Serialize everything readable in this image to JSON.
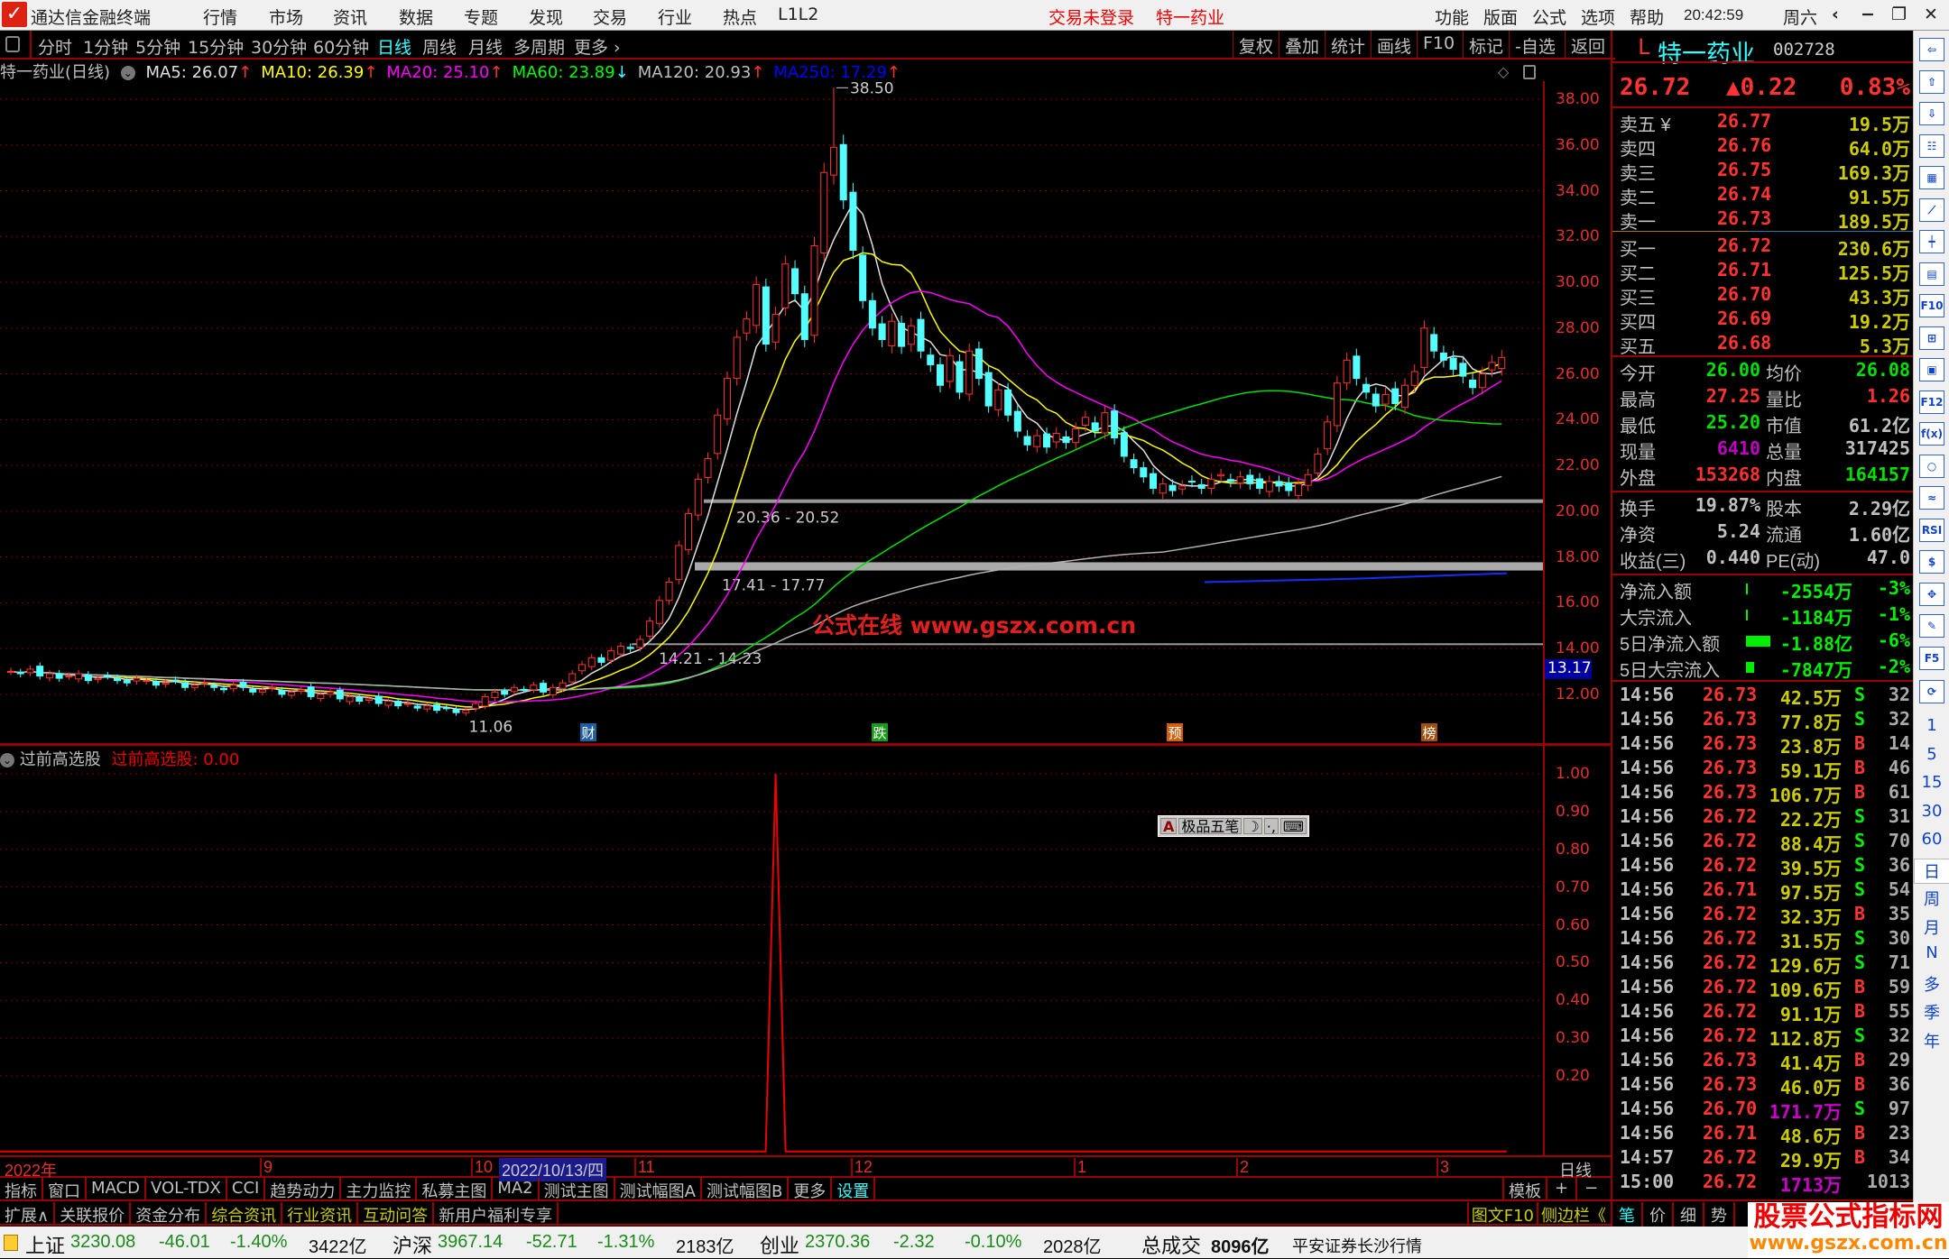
{
  "app": {
    "title": "通达信金融终端",
    "menu": [
      "行情",
      "市场",
      "资讯",
      "数据",
      "专题",
      "发现",
      "交易",
      "行业",
      "热点",
      "L1L2"
    ],
    "login_status": "交易未登录",
    "current_stock": "特一药业",
    "right_menu": [
      "功能",
      "版面",
      "公式",
      "选项",
      "帮助"
    ],
    "clock": "20:42:59",
    "weekday": "周六",
    "window_controls": [
      "‹",
      "−",
      "❐",
      "✕"
    ]
  },
  "toolbar": {
    "periods": [
      "分时",
      "1分钟",
      "5分钟",
      "15分钟",
      "30分钟",
      "60分钟",
      "日线",
      "周线",
      "月线",
      "多周期",
      "更多 ›"
    ],
    "active_period": "日线",
    "buttons": [
      "复权",
      "叠加",
      "统计",
      "画线",
      "F10",
      "标记",
      "-自选",
      "返回"
    ]
  },
  "ma_legend": {
    "title": "特一药业(日线)",
    "items": [
      {
        "label": "MA5: 26.07",
        "arrow": "↑",
        "color": "#e0e0e0"
      },
      {
        "label": "MA10: 26.39",
        "arrow": "↑",
        "color": "#ffff00"
      },
      {
        "label": "MA20: 25.10",
        "arrow": "↑",
        "color": "#ff00ff"
      },
      {
        "label": "MA60: 23.89",
        "arrow": "↓",
        "color": "#00ff00"
      },
      {
        "label": "MA120: 20.93",
        "arrow": "↑",
        "color": "#c0c0c0"
      },
      {
        "label": "MA250: 17.29",
        "arrow": "↑",
        "color": "#0000ff"
      }
    ]
  },
  "kline": {
    "price_axis": [
      "38.00",
      "36.00",
      "34.00",
      "32.00",
      "30.00",
      "28.00",
      "26.00",
      "24.00",
      "22.00",
      "20.00",
      "18.00",
      "16.00",
      "14.00",
      "12.00"
    ],
    "closes": [
      13.0,
      12.9,
      13.1,
      12.8,
      12.9,
      12.7,
      12.8,
      12.9,
      12.6,
      12.7,
      12.8,
      12.6,
      12.5,
      12.7,
      12.6,
      12.4,
      12.5,
      12.6,
      12.3,
      12.4,
      12.5,
      12.3,
      12.2,
      12.4,
      12.3,
      12.1,
      12.2,
      12.3,
      12.0,
      12.1,
      12.2,
      11.9,
      12.0,
      12.1,
      11.8,
      11.9,
      11.7,
      11.8,
      11.6,
      11.7,
      11.5,
      11.6,
      11.4,
      11.5,
      11.3,
      11.4,
      11.2,
      11.3,
      11.6,
      11.9,
      12.1,
      12.0,
      12.3,
      12.2,
      12.4,
      12.1,
      12.3,
      12.5,
      12.9,
      13.3,
      13.6,
      13.4,
      13.9,
      14.1,
      14.0,
      14.4,
      15.2,
      16.1,
      16.9,
      18.5,
      19.9,
      21.4,
      22.3,
      24.2,
      25.8,
      27.6,
      28.4,
      29.9,
      27.3,
      28.6,
      30.8,
      29.5,
      27.5,
      31.6,
      34.8,
      35.9,
      33.6,
      31.4,
      29.2,
      28.0,
      27.5,
      28.3,
      27.2,
      28.1,
      27.0,
      26.4,
      25.5,
      26.8,
      25.2,
      27.0,
      25.8,
      24.6,
      25.3,
      24.2,
      23.5,
      22.9,
      23.3,
      22.8,
      23.4,
      23.0,
      23.6,
      24.1,
      23.5,
      24.3,
      23.2,
      22.4,
      21.9,
      21.5,
      21.0,
      21.2,
      20.9,
      21.1,
      21.3,
      21.0,
      21.4,
      21.6,
      21.3,
      21.5,
      21.2,
      21.0,
      21.3,
      21.1,
      20.9,
      21.2,
      21.6,
      22.5,
      23.9,
      25.6,
      26.6,
      25.8,
      25.2,
      24.6,
      25.1,
      24.7,
      25.5,
      26.1,
      28.0,
      27.0,
      26.6,
      26.2,
      25.9,
      25.4,
      26.0,
      26.5,
      26.72
    ],
    "high_label": "38.50",
    "high_value": 38.5,
    "low_label": "11.06",
    "low_value": 11.06,
    "zones": [
      {
        "label": "20.36 - 20.52",
        "low": 20.36,
        "high": 20.52
      },
      {
        "label": "17.41 - 17.77",
        "low": 17.41,
        "high": 17.77
      },
      {
        "label": "14.21 - 14.23",
        "low": 14.21,
        "high": 14.23
      }
    ],
    "cursor_price": "13.17",
    "watermark": "公式在线  www.gszx.com.cn",
    "event_markers": [
      {
        "text": "财",
        "color": "#1f5f9f"
      },
      {
        "text": "跌",
        "color": "#1a9a1a"
      },
      {
        "text": "预",
        "color": "#d06010"
      },
      {
        "text": "榜",
        "color": "#a05010"
      }
    ]
  },
  "indicator": {
    "name": "过前高选股",
    "value_label": "过前高选股: 0.00",
    "axis": [
      "1.00",
      "0.90",
      "0.80",
      "0.70",
      "0.60",
      "0.50",
      "0.40",
      "0.30",
      "0.20"
    ],
    "signal_value": 1.0,
    "ime_bar": {
      "mode": "A",
      "name": "极品五笔",
      "moon": "☽",
      "punct": "·,",
      "keyboard": "⌨"
    }
  },
  "date_axis": {
    "year": "2022年",
    "months": [
      "9",
      "10",
      "11",
      "12",
      "1",
      "2",
      "3"
    ],
    "cursor_date": "2022/10/13/四",
    "period": "日线"
  },
  "indicator_tabs": [
    "指标",
    "窗口",
    "MACD",
    "VOL-TDX",
    "CCI",
    "趋势动力",
    "主力监控",
    "私募主图",
    "MA2",
    "测试主图",
    "测试幅图A",
    "测试幅图B",
    "更多",
    "设置"
  ],
  "template_buttons": [
    "模板",
    "+",
    "−"
  ],
  "ext_tabs": [
    "扩展∧",
    "关联报价",
    "资金分布",
    "综合资讯",
    "行业资讯",
    "互动问答",
    "新用户福利专享"
  ],
  "ext_right": [
    "图文F10",
    "侧边栏《"
  ],
  "quote": {
    "prefix": "L",
    "name": "特一药业",
    "code": "002728",
    "price": "26.72",
    "change": "▲0.22",
    "change_pct": "0.83%",
    "asks": [
      {
        "label": "卖五 ¥",
        "price": "26.77",
        "vol": "19.5万"
      },
      {
        "label": "卖四",
        "price": "26.76",
        "vol": "64.0万"
      },
      {
        "label": "卖三",
        "price": "26.75",
        "vol": "169.3万"
      },
      {
        "label": "卖二",
        "price": "26.74",
        "vol": "91.5万"
      },
      {
        "label": "卖一",
        "price": "26.73",
        "vol": "189.5万"
      }
    ],
    "bids": [
      {
        "label": "买一",
        "price": "26.72",
        "vol": "230.6万"
      },
      {
        "label": "买二",
        "price": "26.71",
        "vol": "125.5万"
      },
      {
        "label": "买三",
        "price": "26.70",
        "vol": "43.3万"
      },
      {
        "label": "买四",
        "price": "26.69",
        "vol": "19.2万"
      },
      {
        "label": "买五",
        "price": "26.68",
        "vol": "5.3万"
      }
    ],
    "stats": [
      {
        "l1": "今开",
        "v1": "26.00",
        "c1": "#00e000",
        "l2": "均价",
        "v2": "26.08",
        "c2": "#00e000"
      },
      {
        "l1": "最高",
        "v1": "27.25",
        "c1": "#ff3030",
        "l2": "量比",
        "v2": "1.26",
        "c2": "#ff3030"
      },
      {
        "l1": "最低",
        "v1": "25.20",
        "c1": "#00e000",
        "l2": "市值",
        "v2": "61.2亿",
        "c2": "#c0c0c0"
      },
      {
        "l1": "现量",
        "v1": "6410",
        "c1": "#c000c0",
        "l2": "总量",
        "v2": "317425",
        "c2": "#c0c0c0"
      },
      {
        "l1": "外盘",
        "v1": "153268",
        "c1": "#ff3030",
        "l2": "内盘",
        "v2": "164157",
        "c2": "#00e000"
      }
    ],
    "fundamentals": [
      {
        "l1": "换手",
        "v1": "19.87%",
        "l2": "股本",
        "v2": "2.29亿"
      },
      {
        "l1": "净资",
        "v1": "5.24",
        "l2": "流通",
        "v2": "1.60亿"
      },
      {
        "l1": "收益(三)",
        "v1": "0.440",
        "l2": "PE(动)",
        "v2": "47.0"
      }
    ],
    "flows": [
      {
        "label": "净流入额",
        "value": "-2554万",
        "pct": "-3%",
        "bar": 0.05
      },
      {
        "label": "大宗流入",
        "value": "-1184万",
        "pct": "-1%",
        "bar": 0.02
      },
      {
        "label": "5日净流入额",
        "value": "-1.88亿",
        "pct": "-6%",
        "bar": 0.75
      },
      {
        "label": "5日大宗流入",
        "value": "-7847万",
        "pct": "-2%",
        "bar": 0.25
      }
    ],
    "ticks": [
      {
        "t": "14:56",
        "p": "26.73",
        "v": "42.5万",
        "bs": "S",
        "n": "32"
      },
      {
        "t": "14:56",
        "p": "26.73",
        "v": "77.8万",
        "bs": "S",
        "n": "32"
      },
      {
        "t": "14:56",
        "p": "26.73",
        "v": "23.8万",
        "bs": "B",
        "n": "14"
      },
      {
        "t": "14:56",
        "p": "26.73",
        "v": "59.1万",
        "bs": "B",
        "n": "46"
      },
      {
        "t": "14:56",
        "p": "26.73",
        "v": "106.7万",
        "bs": "B",
        "n": "61"
      },
      {
        "t": "14:56",
        "p": "26.72",
        "v": "22.2万",
        "bs": "S",
        "n": "31"
      },
      {
        "t": "14:56",
        "p": "26.72",
        "v": "88.4万",
        "bs": "S",
        "n": "70"
      },
      {
        "t": "14:56",
        "p": "26.72",
        "v": "39.5万",
        "bs": "S",
        "n": "36"
      },
      {
        "t": "14:56",
        "p": "26.71",
        "v": "97.5万",
        "bs": "S",
        "n": "54"
      },
      {
        "t": "14:56",
        "p": "26.72",
        "v": "32.3万",
        "bs": "B",
        "n": "35"
      },
      {
        "t": "14:56",
        "p": "26.72",
        "v": "31.5万",
        "bs": "S",
        "n": "30"
      },
      {
        "t": "14:56",
        "p": "26.72",
        "v": "129.6万",
        "bs": "S",
        "n": "71"
      },
      {
        "t": "14:56",
        "p": "26.72",
        "v": "109.6万",
        "bs": "B",
        "n": "59"
      },
      {
        "t": "14:56",
        "p": "26.72",
        "v": "91.1万",
        "bs": "B",
        "n": "55"
      },
      {
        "t": "14:56",
        "p": "26.72",
        "v": "112.8万",
        "bs": "S",
        "n": "32"
      },
      {
        "t": "14:56",
        "p": "26.73",
        "v": "41.4万",
        "bs": "B",
        "n": "29"
      },
      {
        "t": "14:56",
        "p": "26.73",
        "v": "46.0万",
        "bs": "B",
        "n": "36"
      },
      {
        "t": "14:56",
        "p": "26.70",
        "v": "171.7万",
        "bs": "S",
        "n": "97",
        "big": true
      },
      {
        "t": "14:56",
        "p": "26.71",
        "v": "48.6万",
        "bs": "B",
        "n": "23"
      },
      {
        "t": "14:57",
        "p": "26.72",
        "v": "29.9万",
        "bs": "B",
        "n": "34"
      },
      {
        "t": "15:00",
        "p": "26.72",
        "v": "1713万",
        "bs": "",
        "n": "1013",
        "big": true
      }
    ],
    "bottom_tabs": [
      "笔",
      "价",
      "细",
      "势"
    ]
  },
  "sidebar": {
    "icons": [
      "arrow-left",
      "arrow-up",
      "arrow-down",
      "list-chart",
      "color-bars",
      "line-chart",
      "candles",
      "windows",
      "F10",
      "tree",
      "book",
      "F12",
      "function",
      "circle",
      "wave",
      "RSI",
      "dollar",
      "move",
      "pencil",
      "F5",
      "refresh"
    ],
    "icon_text": {
      "F10": "F10",
      "F12": "F12",
      "RSI": "RSI",
      "F5": "F5",
      "function": "f(x)"
    },
    "periods": [
      "1",
      "5",
      "15",
      "30",
      "60",
      "日",
      "周",
      "月",
      "N",
      "多",
      "季",
      "年"
    ],
    "active_period": "日"
  },
  "statusbar": {
    "indices": [
      {
        "name": "上证",
        "value": "3230.08",
        "change": "-46.01",
        "pct": "-1.40%",
        "amount": "3422亿"
      },
      {
        "name": "沪深",
        "value": "3967.14",
        "change": "-52.71",
        "pct": "-1.31%",
        "amount": "2183亿"
      },
      {
        "name": "创业",
        "value": "2370.36",
        "change": "-2.32",
        "pct": "-0.10%",
        "amount": "2028亿"
      }
    ],
    "total_label": "总成交",
    "total_value": "8096亿",
    "broker": "平安证券长沙行情"
  },
  "brand": {
    "name": "股票公式指标网",
    "url": "www.gszx.com.cn"
  },
  "colors": {
    "up": "#ff3232",
    "down": "#54ffff",
    "grid": "#8b0000",
    "frame": "#990000"
  }
}
